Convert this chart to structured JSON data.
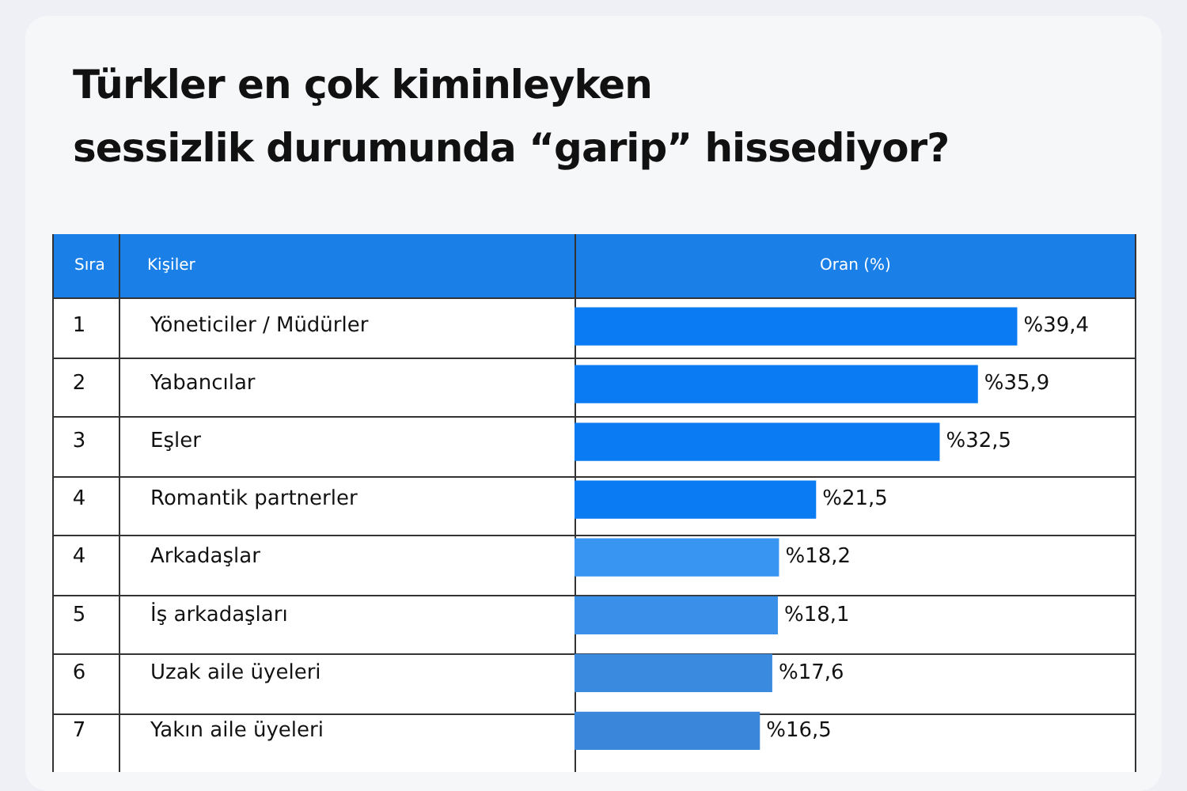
{
  "chart_data": {
    "type": "bar",
    "orientation": "horizontal",
    "title": "Türkler en çok kiminleyken\nsessizlik durumunda “garip” hissediyor?",
    "categories": [
      "Yöneticiler / Müdürler",
      "Yabancılar",
      "Eşler",
      "Romantik partnerler",
      "Arkadaşlar",
      "İş arkadaşları",
      "Uzak aile üyeleri",
      "Yakın aile üyeleri"
    ],
    "values": [
      39.4,
      35.9,
      32.5,
      21.5,
      18.2,
      18.1,
      17.6,
      16.5
    ],
    "value_labels": [
      "%39,4",
      "%35,9",
      "%32,5",
      "%21,5",
      "%18,2",
      "%18,1",
      "%17,6",
      "%16,5"
    ],
    "colors": [
      "#0a7bf2",
      "#0a7bf2",
      "#0a7bf2",
      "#0a7bf2",
      "#3896f2",
      "#3a8fe8",
      "#3a8ae0",
      "#3a86da"
    ],
    "xlim": [
      0,
      50
    ],
    "tick_labels": "y",
    "legend": false,
    "annotations": [
      "Sıra",
      "Kişiler",
      "Oran (%)",
      "1",
      "2",
      "3",
      "4",
      "4",
      "5",
      "6",
      "7"
    ]
  }
}
